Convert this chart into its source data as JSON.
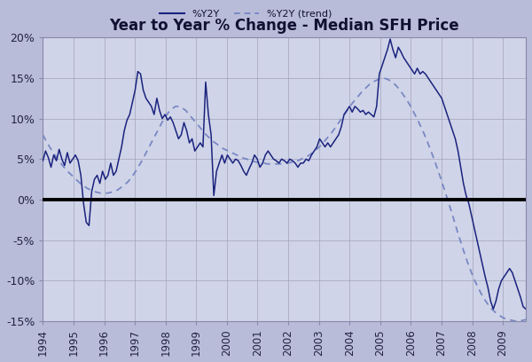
{
  "title": "Year to Year % Change - Median SFH Price",
  "legend_labels": [
    "%Y2Y",
    "%Y2Y (trend)"
  ],
  "bg_color": "#b8bcd8",
  "plot_bg_color": "#d0d4e8",
  "line_color": "#1a237e",
  "trend_color": "#7080c0",
  "zero_line_color": "#000000",
  "ylim": [
    -15,
    20
  ],
  "yticks": [
    -15,
    -10,
    -5,
    0,
    5,
    10,
    15,
    20
  ],
  "xlim_start": 1994.0,
  "xlim_end": 2009.75,
  "xtick_years": [
    1994,
    1995,
    1996,
    1997,
    1998,
    1999,
    2000,
    2001,
    2002,
    2003,
    2004,
    2005,
    2006,
    2007,
    2008,
    2009
  ],
  "y2y": [
    4.8,
    6.0,
    5.2,
    4.0,
    5.5,
    4.8,
    6.2,
    5.0,
    4.2,
    5.8,
    4.5,
    5.0,
    5.5,
    4.8,
    3.0,
    -0.5,
    -2.8,
    -3.2,
    1.0,
    2.5,
    3.0,
    2.0,
    3.5,
    2.5,
    3.0,
    4.5,
    3.0,
    3.5,
    5.0,
    6.5,
    8.5,
    9.8,
    10.5,
    12.0,
    13.5,
    15.8,
    15.5,
    13.5,
    12.5,
    12.0,
    11.5,
    10.5,
    12.5,
    11.0,
    10.0,
    10.5,
    9.8,
    10.2,
    9.5,
    8.5,
    7.5,
    8.0,
    9.5,
    8.5,
    7.0,
    7.5,
    6.0,
    6.5,
    7.0,
    6.5,
    14.5,
    10.5,
    8.0,
    0.5,
    3.5,
    4.5,
    5.5,
    4.5,
    5.5,
    5.0,
    4.5,
    5.0,
    4.8,
    4.2,
    3.5,
    3.0,
    3.8,
    4.5,
    5.5,
    5.0,
    4.0,
    4.5,
    5.5,
    6.0,
    5.5,
    5.0,
    4.8,
    4.5,
    5.0,
    4.8,
    4.5,
    5.0,
    4.8,
    4.5,
    4.0,
    4.5,
    4.5,
    5.0,
    4.8,
    5.5,
    6.0,
    6.5,
    7.5,
    7.0,
    6.5,
    7.0,
    6.5,
    7.0,
    7.5,
    8.0,
    9.0,
    10.5,
    11.0,
    11.5,
    10.8,
    11.5,
    11.2,
    10.8,
    11.0,
    10.5,
    10.8,
    10.5,
    10.2,
    11.5,
    15.5,
    16.5,
    17.5,
    18.5,
    19.8,
    18.5,
    17.5,
    18.8,
    18.2,
    17.5,
    17.0,
    16.5,
    16.0,
    15.5,
    16.2,
    15.5,
    15.8,
    15.5,
    15.0,
    14.5,
    14.0,
    13.5,
    13.0,
    12.5,
    11.5,
    10.5,
    9.5,
    8.5,
    7.5,
    6.0,
    4.0,
    2.0,
    0.5,
    -0.5,
    -2.0,
    -3.5,
    -5.0,
    -6.5,
    -8.0,
    -9.5,
    -10.8,
    -12.5,
    -13.5,
    -12.5,
    -11.0,
    -10.0,
    -9.5,
    -9.0,
    -8.5,
    -9.0,
    -10.0,
    -11.0,
    -12.0,
    -13.2,
    -13.5
  ],
  "trend_x_start": 1994.0,
  "trend_x_end": 2009.75,
  "trend": [
    8.0,
    7.2,
    6.5,
    5.8,
    5.2,
    4.6,
    4.1,
    3.6,
    3.2,
    2.8,
    2.4,
    2.0,
    1.7,
    1.4,
    1.2,
    1.0,
    0.9,
    0.8,
    0.8,
    0.8,
    0.9,
    1.0,
    1.2,
    1.5,
    1.8,
    2.2,
    2.7,
    3.3,
    4.0,
    4.7,
    5.5,
    6.3,
    7.1,
    7.9,
    8.7,
    9.5,
    10.2,
    10.8,
    11.2,
    11.5,
    11.5,
    11.3,
    11.0,
    10.5,
    10.0,
    9.5,
    9.0,
    8.5,
    8.0,
    7.6,
    7.2,
    6.9,
    6.6,
    6.3,
    6.1,
    5.9,
    5.7,
    5.5,
    5.3,
    5.1,
    5.0,
    4.8,
    4.7,
    4.6,
    4.5,
    4.5,
    4.4,
    4.4,
    4.4,
    4.4,
    4.4,
    4.5,
    4.5,
    4.6,
    4.7,
    4.8,
    5.0,
    5.2,
    5.4,
    5.7,
    6.0,
    6.4,
    6.8,
    7.3,
    7.8,
    8.3,
    8.9,
    9.5,
    10.1,
    10.7,
    11.3,
    11.9,
    12.4,
    12.9,
    13.4,
    13.8,
    14.2,
    14.5,
    14.7,
    14.9,
    15.0,
    14.9,
    14.7,
    14.4,
    14.0,
    13.5,
    12.9,
    12.3,
    11.6,
    10.8,
    10.0,
    9.1,
    8.2,
    7.2,
    6.1,
    5.0,
    3.8,
    2.6,
    1.3,
    0.0,
    -1.3,
    -2.7,
    -4.1,
    -5.4,
    -6.7,
    -7.9,
    -9.0,
    -10.0,
    -10.9,
    -11.7,
    -12.4,
    -13.0,
    -13.5,
    -13.9,
    -14.2,
    -14.5,
    -14.7,
    -14.8,
    -14.9,
    -15.0,
    -15.0,
    -14.9,
    -14.8
  ]
}
